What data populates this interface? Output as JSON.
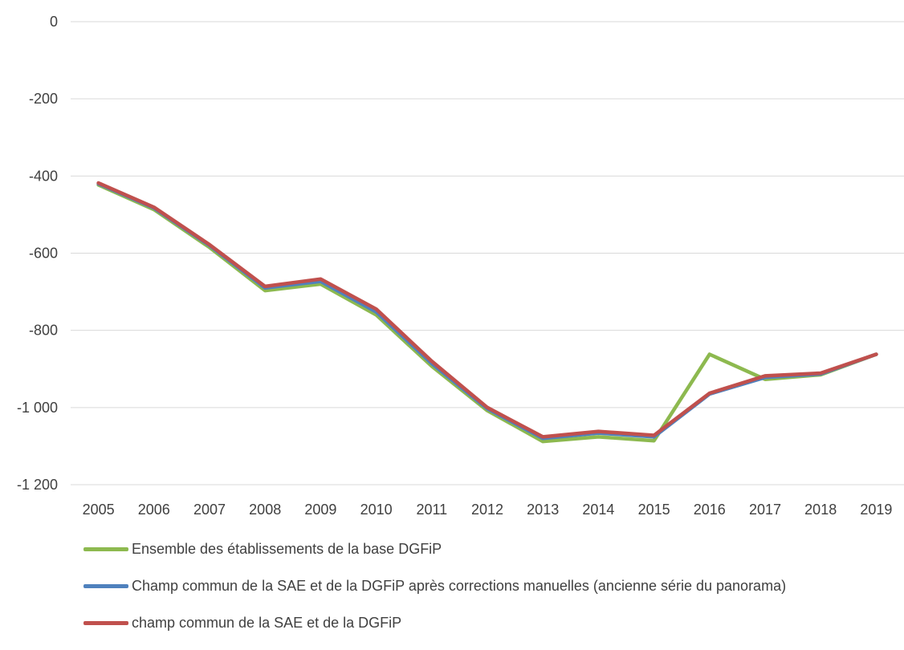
{
  "chart_data": {
    "type": "line",
    "title": "",
    "xlabel": "",
    "ylabel": "",
    "ylim": [
      -1200,
      0
    ],
    "yticks": [
      0,
      -200,
      -400,
      -600,
      -800,
      -1000,
      -1200
    ],
    "ytick_labels": [
      "0",
      "-200",
      "-400",
      "-600",
      "-800",
      "-1 000",
      "-1 200"
    ],
    "categories": [
      "2005",
      "2006",
      "2007",
      "2008",
      "2009",
      "2010",
      "2011",
      "2012",
      "2013",
      "2014",
      "2015",
      "2016",
      "2017",
      "2018",
      "2019"
    ],
    "grid": "horizontal",
    "legend_position": "bottom",
    "series": [
      {
        "name": "Ensemble des établissements de la base DGFiP",
        "color": "#8DB94F",
        "values": [
          -423,
          -487,
          -585,
          -697,
          -680,
          -760,
          -893,
          -1008,
          -1088,
          -1076,
          -1086,
          -862,
          -927,
          -915,
          -862
        ]
      },
      {
        "name": "Champ commun de la SAE et de la DGFiP après corrections manuelles (ancienne série du panorama)",
        "color": "#4F81BD",
        "values": [
          -420,
          -483,
          -580,
          -690,
          -673,
          -752,
          -886,
          -1003,
          -1080,
          -1066,
          -1076,
          -965,
          -922,
          -913,
          -862
        ]
      },
      {
        "name": "champ commun de la SAE et de la DGFiP",
        "color": "#C0504D",
        "values": [
          -418,
          -481,
          -578,
          -686,
          -667,
          -745,
          -880,
          -1000,
          -1076,
          -1062,
          -1072,
          -963,
          -918,
          -911,
          -862
        ]
      }
    ]
  }
}
